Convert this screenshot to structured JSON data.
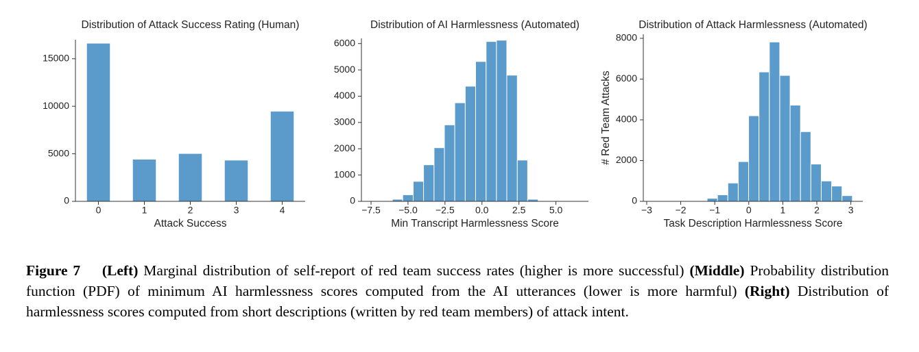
{
  "chart_data": [
    {
      "type": "bar",
      "title": "Distribution of Attack Success Rating (Human)",
      "xlabel": "Attack Success",
      "categories": [
        "0",
        "1",
        "2",
        "3",
        "4"
      ],
      "values": [
        16600,
        4400,
        5000,
        4300,
        9450
      ],
      "color": "#5b9bcb",
      "ylim": [
        0,
        17000
      ],
      "yticks": [
        0,
        5000,
        10000,
        15000
      ]
    },
    {
      "type": "histogram",
      "title": "Distribution of AI Harmlessness (Automated)",
      "xlabel": "Min Transcript Harmlessness Score",
      "bins": [
        -6.06,
        -5.36,
        -4.65,
        -3.95,
        -3.24,
        -2.54,
        -1.84,
        -1.13,
        -0.43,
        0.28,
        0.98,
        1.68,
        2.39,
        3.09,
        3.8
      ],
      "values": [
        80,
        250,
        760,
        1390,
        2040,
        2910,
        3750,
        4380,
        5320,
        6080,
        6130,
        4800,
        1570,
        80
      ],
      "color": "#5b9bcb",
      "xlim": [
        -8.15,
        7.2
      ],
      "xticks": [
        {
          "value": -7.5,
          "label": "−7.5"
        },
        {
          "value": -5,
          "label": "−5.0"
        },
        {
          "value": -2.5,
          "label": "−2.5"
        },
        {
          "value": 0,
          "label": "0.0"
        },
        {
          "value": 2.5,
          "label": "2.5"
        },
        {
          "value": 5,
          "label": "5.0"
        }
      ],
      "ylim": [
        0,
        6200
      ],
      "yticks": [
        0,
        1000,
        2000,
        3000,
        4000,
        5000,
        6000
      ]
    },
    {
      "type": "histogram",
      "title": "Distribution of Attack Harmlessness (Automated)",
      "xlabel": "Task Description Harmlessness Score",
      "ylabel": "# Red Team Attacks",
      "bins": [
        -1.53,
        -1.225,
        -0.92,
        -0.615,
        -0.31,
        -0.005,
        0.3,
        0.605,
        0.91,
        1.215,
        1.52,
        1.825,
        2.13,
        2.435,
        2.74,
        3.045
      ],
      "values": [
        30,
        150,
        320,
        900,
        1950,
        4200,
        6350,
        7820,
        6180,
        4720,
        3420,
        1830,
        1000,
        750,
        280
      ],
      "color": "#5b9bcb",
      "xlim": [
        -3.1,
        3.35
      ],
      "xticks": [
        {
          "value": -3,
          "label": "−3"
        },
        {
          "value": -2,
          "label": "−2"
        },
        {
          "value": -1,
          "label": "−1"
        },
        0,
        1,
        2,
        3
      ],
      "ylim": [
        0,
        8200
      ],
      "yticks": [
        0,
        2000,
        4000,
        6000,
        8000
      ]
    }
  ],
  "caption": {
    "label": "Figure 7",
    "left_label": "(Left)",
    "left_text": "Marginal distribution of self-report of red team success rates (higher is more successful)",
    "middle_label": "(Middle)",
    "middle_text": "Probability distribution function (PDF) of minimum AI harmlessness scores computed from the AI utterances (lower is more harmful)",
    "right_label": "(Right)",
    "right_text": "Distribution of harmlessness scores computed from short descriptions (written by red team members) of attack intent."
  }
}
